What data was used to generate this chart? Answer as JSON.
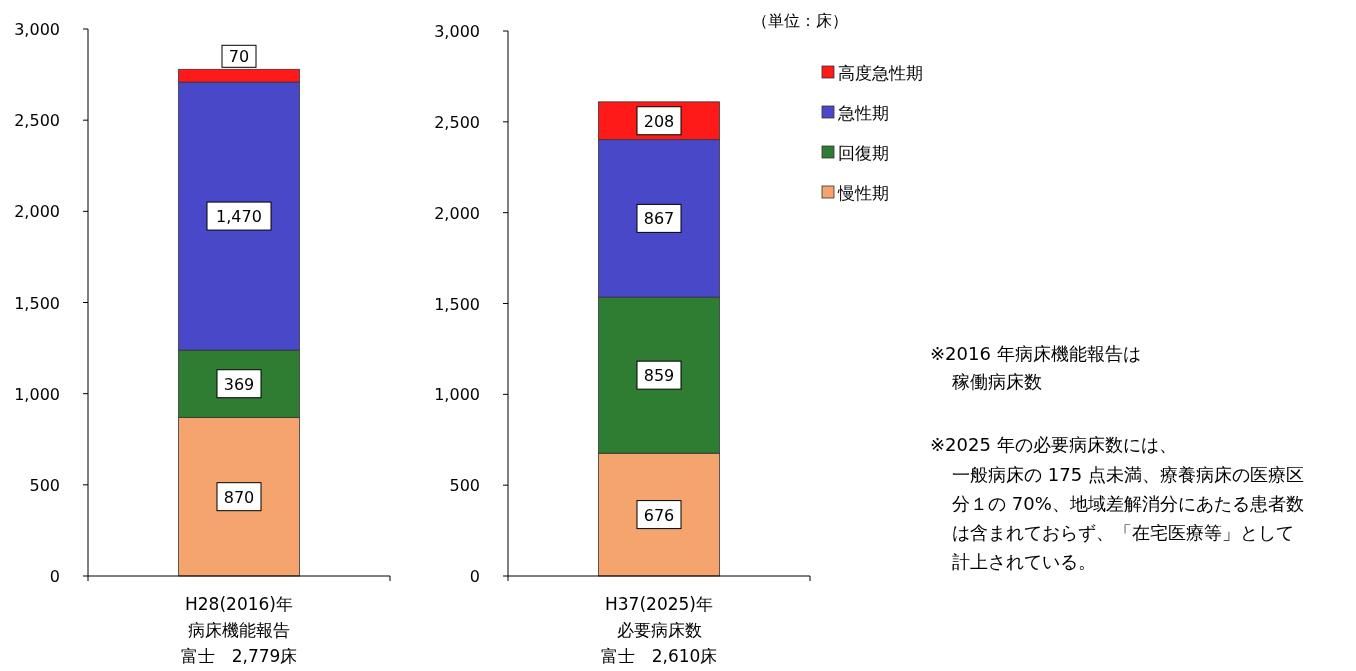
{
  "chart_data": [
    {
      "type": "bar",
      "stacked": true,
      "grid": false,
      "categories": [
        "H28(2016)年病床機能報告"
      ],
      "xlabel": "富士　2,779床",
      "series": [
        {
          "color": "#f4a46c",
          "values": [
            870
          ],
          "value_labels": [
            "870"
          ]
        },
        {
          "color": "#2e7d32",
          "values": [
            369
          ],
          "value_labels": [
            "369"
          ]
        },
        {
          "color": "#4848c8",
          "values": [
            1470
          ],
          "value_labels": [
            "1,470"
          ]
        },
        {
          "color": "#ff1a1a",
          "values": [
            70
          ],
          "value_labels": [
            "70"
          ]
        }
      ],
      "ylim": [
        0,
        3000
      ],
      "yticks": [
        {
          "value": 0,
          "label": "0"
        },
        {
          "value": 500,
          "label": "500"
        },
        {
          "value": 1000,
          "label": "1,000"
        },
        {
          "value": 1500,
          "label": "1,500"
        },
        {
          "value": 2000,
          "label": "2,000"
        },
        {
          "value": 2500,
          "label": "2,500"
        },
        {
          "value": 3000,
          "label": "3,000"
        }
      ]
    },
    {
      "type": "bar",
      "stacked": true,
      "grid": false,
      "legend": "right",
      "categories": [
        "H37(2025)年必要病床数"
      ],
      "xlabel": "富士　2,610床",
      "series": [
        {
          "name": "慢性期",
          "color": "#f4a46c",
          "values": [
            676
          ],
          "value_labels": [
            "676"
          ]
        },
        {
          "name": "回復期",
          "color": "#2e7d32",
          "values": [
            859
          ],
          "value_labels": [
            "859"
          ]
        },
        {
          "name": "急性期",
          "color": "#4848c8",
          "values": [
            867
          ],
          "value_labels": [
            "867"
          ]
        },
        {
          "name": "高度急性期",
          "color": "#ff1a1a",
          "values": [
            208
          ],
          "value_labels": [
            "208"
          ]
        }
      ],
      "ylim": [
        0,
        3000
      ],
      "yticks": [
        {
          "value": 0,
          "label": "0"
        },
        {
          "value": 500,
          "label": "500"
        },
        {
          "value": 1000,
          "label": "1,000"
        },
        {
          "value": 1500,
          "label": "1,500"
        },
        {
          "value": 2000,
          "label": "2,000"
        },
        {
          "value": 2500,
          "label": "2,500"
        },
        {
          "value": 3000,
          "label": "3,000"
        }
      ],
      "annotations": [
        "（単位：床）",
        "※2016 年病床機能報告は",
        "稼働病床数",
        "※2025 年の必要病床数には、",
        "一般病床の 175 点未満、療養病床の医療区分１の 70%、地域差解消分にあたる患者数は含まれておらず、「在宅医療等」として計上されている。"
      ]
    }
  ]
}
